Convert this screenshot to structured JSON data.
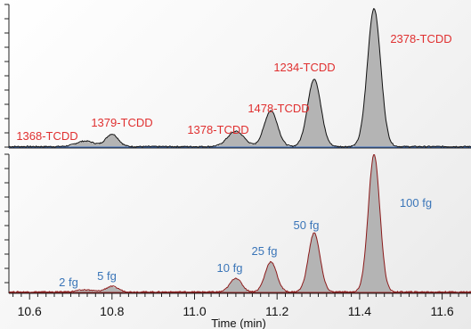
{
  "chart_data": [
    {
      "type": "line",
      "panel": "top",
      "fill": "#b4b4b4",
      "stroke": "#111111",
      "baseline_color": "#3a6fc4",
      "label_color": "#e03030",
      "xlim": [
        10.55,
        11.67
      ],
      "ylim": [
        0,
        100
      ],
      "peaks": [
        {
          "name": "1368-TCDD",
          "x": 10.735,
          "height": 4,
          "width": 0.022
        },
        {
          "name": "1379-TCDD",
          "x": 10.8,
          "height": 9,
          "width": 0.015
        },
        {
          "name": "1378-TCDD",
          "x": 11.1,
          "height": 11,
          "width": 0.02
        },
        {
          "name": "1478-TCDD",
          "x": 11.185,
          "height": 26,
          "width": 0.016
        },
        {
          "name": "1234-TCDD",
          "x": 11.29,
          "height": 49,
          "width": 0.016
        },
        {
          "name": "2378-TCDD",
          "x": 11.435,
          "height": 100,
          "width": 0.016
        }
      ]
    },
    {
      "type": "line",
      "panel": "bottom",
      "fill": "#b4b4b4",
      "stroke": "#8b1a1a",
      "baseline_color": "#8b1a1a",
      "label_color": "#3a75b8",
      "xlim": [
        10.55,
        11.67
      ],
      "ylim": [
        0,
        100
      ],
      "xlabel": "Time (min)",
      "xticks": [
        "10.6",
        "10.8",
        "11.0",
        "11.2",
        "11.4",
        "11.6"
      ],
      "peaks": [
        {
          "name": "2 fg",
          "x": 10.735,
          "height": 1.5,
          "width": 0.02
        },
        {
          "name": "5 fg",
          "x": 10.8,
          "height": 4,
          "width": 0.015
        },
        {
          "name": "10 fg",
          "x": 11.1,
          "height": 10,
          "width": 0.014
        },
        {
          "name": "25 fg",
          "x": 11.185,
          "height": 22,
          "width": 0.014
        },
        {
          "name": "50 fg",
          "x": 11.29,
          "height": 43,
          "width": 0.014
        },
        {
          "name": "100 fg",
          "x": 11.435,
          "height": 100,
          "width": 0.014
        }
      ]
    }
  ]
}
